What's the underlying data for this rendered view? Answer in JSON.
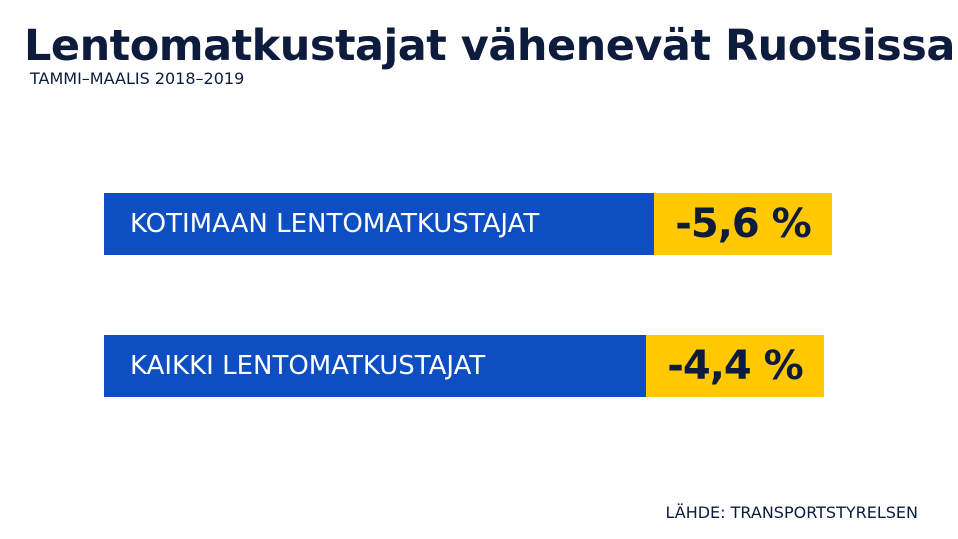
{
  "chart_data": {
    "type": "table",
    "title": "Lentomatkustajat vähenevät Ruotsissa",
    "subtitle": "TAMMI–MAALIS 2018–2019",
    "rows": [
      {
        "label": "KOTIMAAN LENTOMATKUSTAJAT",
        "value": -5.6,
        "display": "-5,6 %"
      },
      {
        "label": "KAIKKI LENTOMATKUSTAJAT",
        "value": -4.4,
        "display": "-4,4 %"
      }
    ],
    "source": "LÄHDE: TRANSPORTSTYRELSEN"
  },
  "colors": {
    "label_bg": "#0d4fc2",
    "value_bg": "#ffc800",
    "text_dark": "#0d1b3d"
  }
}
